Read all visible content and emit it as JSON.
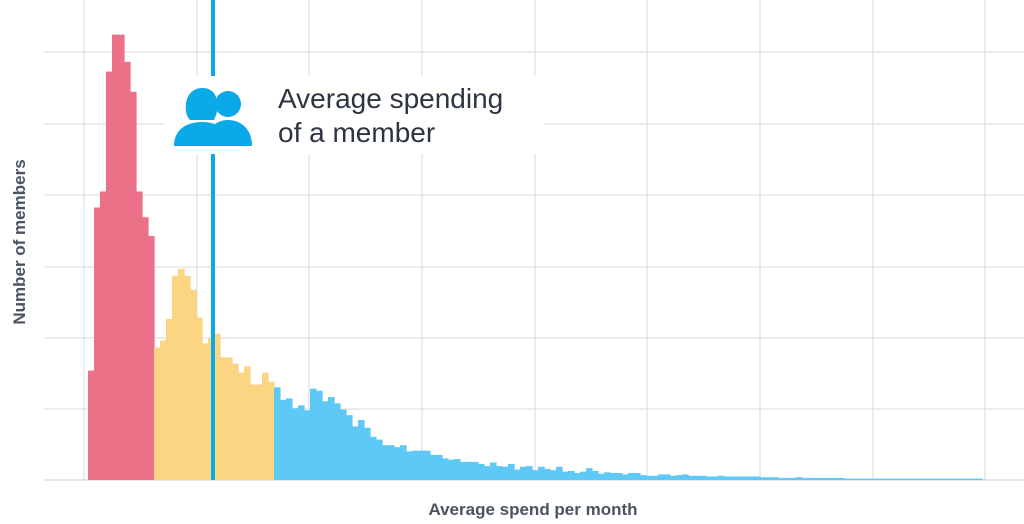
{
  "chart_data": {
    "type": "bar",
    "xlabel": "Average spend per month",
    "ylabel": "Number of members",
    "grid": true,
    "series_colors": {
      "low": "#eb7188",
      "mid": "#fcd583",
      "high": "#5ec9f7"
    },
    "mean_line_color": "#0aa9e8",
    "x": [
      0,
      1,
      2,
      3,
      4,
      5,
      6,
      7,
      8,
      9,
      10,
      11,
      12,
      13,
      14,
      15,
      16,
      17,
      18,
      19,
      20,
      21,
      22,
      23,
      24,
      25,
      26,
      27,
      28,
      29,
      30,
      31,
      32,
      33,
      34,
      35,
      36,
      37,
      38,
      39,
      40,
      41,
      42,
      43,
      44,
      45,
      46,
      47,
      48,
      49,
      50,
      51,
      52,
      53,
      54,
      55,
      56,
      57,
      58,
      59,
      60,
      61,
      62,
      63,
      64,
      65,
      66,
      67,
      67,
      68,
      69,
      70,
      71,
      72,
      73,
      74,
      75,
      76,
      77,
      78,
      79,
      80,
      81,
      82,
      83,
      84,
      85,
      86,
      87,
      88,
      89,
      90,
      91,
      92,
      93,
      94,
      95,
      96,
      97,
      98,
      99,
      100,
      101,
      102,
      103,
      104,
      105,
      106,
      107,
      108,
      109,
      110,
      111,
      112,
      113,
      114,
      115,
      116,
      117,
      118,
      119,
      120,
      121,
      122,
      123,
      124,
      125,
      126,
      127,
      128,
      129,
      130,
      131,
      132,
      133,
      134,
      135,
      136,
      137,
      138,
      139,
      140,
      141,
      142,
      143,
      144,
      145,
      146,
      147,
      148,
      149,
      150
    ],
    "pink_values": [
      15.7,
      39.1,
      41.4,
      58.6,
      63.9,
      63.9,
      60.0,
      55.7,
      41.4,
      37.7,
      35.0
    ],
    "yellow_values": [
      19.0,
      20.0,
      23.1,
      29.3,
      30.3,
      29.3,
      27.3,
      23.3,
      19.6,
      20.4,
      21.0,
      17.6,
      17.6,
      16.7,
      15.4,
      16.3,
      13.7,
      13.7,
      15.4,
      14.1
    ],
    "blue_values": [
      13.3,
      11.5,
      11.7,
      10.3,
      10.7,
      10.0,
      13.1,
      12.8,
      11.3,
      11.9,
      11.0,
      10.1,
      9.3,
      7.7,
      8.6,
      7.5,
      6.2,
      5.8,
      5.0,
      5.0,
      4.7,
      5.0,
      4.1,
      4.2,
      4.2,
      4.2,
      3.6,
      3.6,
      3.1,
      2.9,
      3.0,
      2.6,
      2.6,
      2.6,
      2.3,
      2.0,
      2.5,
      2.0,
      1.9,
      2.3,
      1.5,
      1.9,
      2.0,
      1.4,
      1.9,
      1.6,
      1.4,
      1.9,
      1.2,
      1.3,
      1.0,
      1.2,
      1.7,
      1.3,
      0.9,
      1.1,
      1.0,
      1.0,
      0.8,
      1.0,
      1.0,
      0.7,
      0.6,
      0.6,
      0.8,
      0.8,
      0.6,
      0.7,
      0.8,
      0.6,
      0.6,
      0.6,
      0.5,
      0.5,
      0.6,
      0.5,
      0.5,
      0.5,
      0.5,
      0.5,
      0.5,
      0.4,
      0.4,
      0.4,
      0.3,
      0.3,
      0.3,
      0.4,
      0.3,
      0.3,
      0.3,
      0.3,
      0.3,
      0.3,
      0.3,
      0.2,
      0.2,
      0.2,
      0.2,
      0.2,
      0.2,
      0.2,
      0.2,
      0.2,
      0.2,
      0.2,
      0.2,
      0.2,
      0.2,
      0.2,
      0.2,
      0.2,
      0.2,
      0.2,
      0.2,
      0.2,
      0.2,
      0.2
    ],
    "mean_x": 21,
    "annotation": {
      "line1": "Average spending",
      "line2": "of a member",
      "icon": "two-members-icon"
    }
  }
}
